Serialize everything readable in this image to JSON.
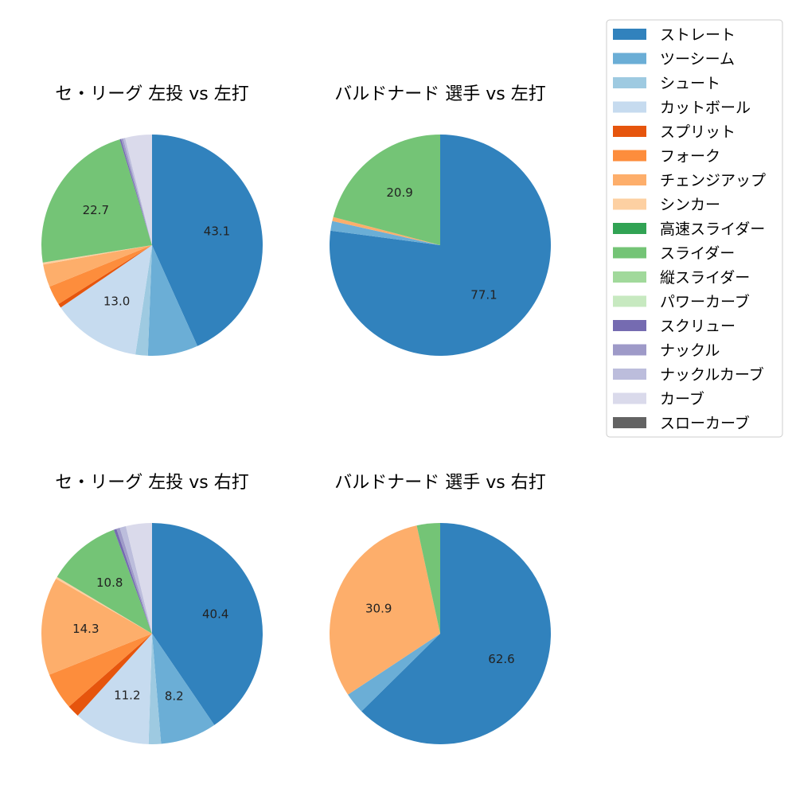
{
  "legend": {
    "items": [
      {
        "label": "ストレート",
        "color": "#3182bd"
      },
      {
        "label": "ツーシーム",
        "color": "#6baed6"
      },
      {
        "label": "シュート",
        "color": "#9ecae1"
      },
      {
        "label": "カットボール",
        "color": "#c6dbef"
      },
      {
        "label": "スプリット",
        "color": "#e6550d"
      },
      {
        "label": "フォーク",
        "color": "#fd8d3c"
      },
      {
        "label": "チェンジアップ",
        "color": "#fdae6b"
      },
      {
        "label": "シンカー",
        "color": "#fdd0a2"
      },
      {
        "label": "高速スライダー",
        "color": "#31a354"
      },
      {
        "label": "スライダー",
        "color": "#74c476"
      },
      {
        "label": "縦スライダー",
        "color": "#a1d99b"
      },
      {
        "label": "パワーカーブ",
        "color": "#c7e9c0"
      },
      {
        "label": "スクリュー",
        "color": "#756bb1"
      },
      {
        "label": "ナックル",
        "color": "#9e9ac8"
      },
      {
        "label": "ナックルカーブ",
        "color": "#bcbddc"
      },
      {
        "label": "カーブ",
        "color": "#dadaeb"
      },
      {
        "label": "スローカーブ",
        "color": "#636363"
      }
    ]
  },
  "chart_data": [
    {
      "type": "pie",
      "title": "セ・リーグ 左投 vs 左打",
      "slices": [
        {
          "category": "ストレート",
          "value": 43.1,
          "label": "43.1"
        },
        {
          "category": "ツーシーム",
          "value": 7.3,
          "label": ""
        },
        {
          "category": "シュート",
          "value": 1.8,
          "label": ""
        },
        {
          "category": "カットボール",
          "value": 13.0,
          "label": "13.0"
        },
        {
          "category": "スプリット",
          "value": 0.6,
          "label": ""
        },
        {
          "category": "フォーク",
          "value": 2.8,
          "label": ""
        },
        {
          "category": "チェンジアップ",
          "value": 3.3,
          "label": ""
        },
        {
          "category": "シンカー",
          "value": 0.3,
          "label": ""
        },
        {
          "category": "スライダー",
          "value": 22.7,
          "label": "22.7"
        },
        {
          "category": "スクリュー",
          "value": 0.2,
          "label": ""
        },
        {
          "category": "ナックル",
          "value": 0.3,
          "label": ""
        },
        {
          "category": "ナックルカーブ",
          "value": 0.3,
          "label": ""
        },
        {
          "category": "カーブ",
          "value": 3.9,
          "label": ""
        }
      ]
    },
    {
      "type": "pie",
      "title": "バルドナード 選手 vs 左打",
      "slices": [
        {
          "category": "ストレート",
          "value": 77.1,
          "label": "77.1"
        },
        {
          "category": "ツーシーム",
          "value": 1.4,
          "label": ""
        },
        {
          "category": "チェンジアップ",
          "value": 0.6,
          "label": ""
        },
        {
          "category": "スライダー",
          "value": 20.9,
          "label": "20.9"
        }
      ]
    },
    {
      "type": "pie",
      "title": "セ・リーグ 左投 vs 右打",
      "slices": [
        {
          "category": "ストレート",
          "value": 40.4,
          "label": "40.4"
        },
        {
          "category": "ツーシーム",
          "value": 8.2,
          "label": "8.2"
        },
        {
          "category": "シュート",
          "value": 1.8,
          "label": ""
        },
        {
          "category": "カットボール",
          "value": 11.2,
          "label": "11.2"
        },
        {
          "category": "スプリット",
          "value": 1.8,
          "label": ""
        },
        {
          "category": "フォーク",
          "value": 5.4,
          "label": ""
        },
        {
          "category": "チェンジアップ",
          "value": 14.3,
          "label": "14.3"
        },
        {
          "category": "シンカー",
          "value": 0.3,
          "label": ""
        },
        {
          "category": "スライダー",
          "value": 10.8,
          "label": "10.8"
        },
        {
          "category": "スクリュー",
          "value": 0.4,
          "label": ""
        },
        {
          "category": "ナックル",
          "value": 0.5,
          "label": ""
        },
        {
          "category": "ナックルカーブ",
          "value": 0.9,
          "label": ""
        },
        {
          "category": "カーブ",
          "value": 3.8,
          "label": ""
        }
      ]
    },
    {
      "type": "pie",
      "title": "バルドナード 選手 vs 右打",
      "slices": [
        {
          "category": "ストレート",
          "value": 62.6,
          "label": "62.6"
        },
        {
          "category": "ツーシーム",
          "value": 3.1,
          "label": ""
        },
        {
          "category": "チェンジアップ",
          "value": 30.9,
          "label": "30.9"
        },
        {
          "category": "スライダー",
          "value": 3.4,
          "label": ""
        }
      ]
    }
  ]
}
